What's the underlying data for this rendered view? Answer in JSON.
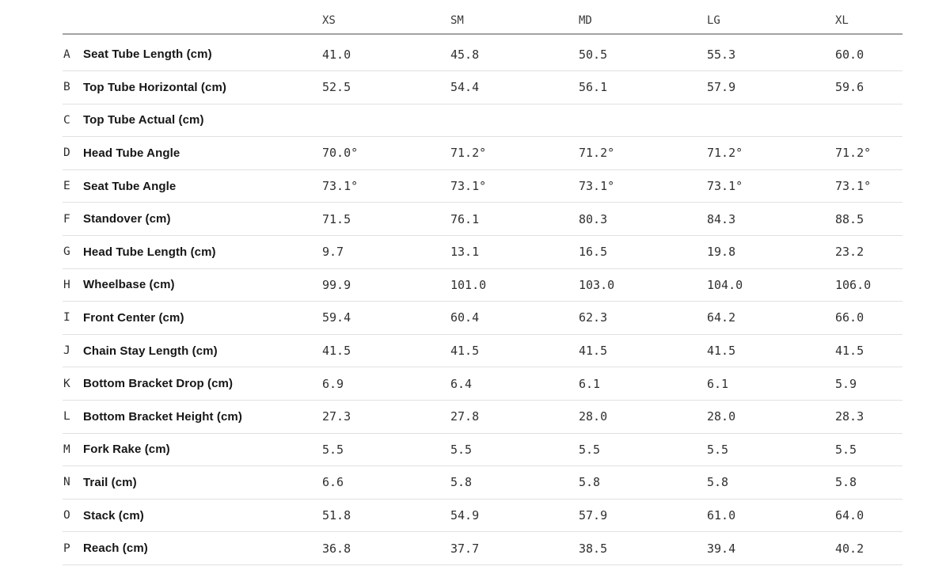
{
  "chart_data": {
    "type": "table",
    "size_columns": [
      "XS",
      "SM",
      "MD",
      "LG",
      "XL"
    ],
    "rows": [
      {
        "key": "A",
        "label": "Seat Tube Length (cm)",
        "values": [
          "41.0",
          "45.8",
          "50.5",
          "55.3",
          "60.0"
        ]
      },
      {
        "key": "B",
        "label": "Top Tube Horizontal (cm)",
        "values": [
          "52.5",
          "54.4",
          "56.1",
          "57.9",
          "59.6"
        ]
      },
      {
        "key": "C",
        "label": "Top Tube Actual (cm)",
        "values": [
          "",
          "",
          "",
          "",
          ""
        ]
      },
      {
        "key": "D",
        "label": "Head Tube Angle",
        "values": [
          "70.0°",
          "71.2°",
          "71.2°",
          "71.2°",
          "71.2°"
        ]
      },
      {
        "key": "E",
        "label": "Seat Tube Angle",
        "values": [
          "73.1°",
          "73.1°",
          "73.1°",
          "73.1°",
          "73.1°"
        ]
      },
      {
        "key": "F",
        "label": "Standover (cm)",
        "values": [
          "71.5",
          "76.1",
          "80.3",
          "84.3",
          "88.5"
        ]
      },
      {
        "key": "G",
        "label": "Head Tube Length (cm)",
        "values": [
          "9.7",
          "13.1",
          "16.5",
          "19.8",
          "23.2"
        ]
      },
      {
        "key": "H",
        "label": "Wheelbase (cm)",
        "values": [
          "99.9",
          "101.0",
          "103.0",
          "104.0",
          "106.0"
        ]
      },
      {
        "key": "I",
        "label": "Front Center (cm)",
        "values": [
          "59.4",
          "60.4",
          "62.3",
          "64.2",
          "66.0"
        ]
      },
      {
        "key": "J",
        "label": "Chain Stay Length (cm)",
        "values": [
          "41.5",
          "41.5",
          "41.5",
          "41.5",
          "41.5"
        ]
      },
      {
        "key": "K",
        "label": "Bottom Bracket Drop (cm)",
        "values": [
          "6.9",
          "6.4",
          "6.1",
          "6.1",
          "5.9"
        ]
      },
      {
        "key": "L",
        "label": "Bottom Bracket Height (cm)",
        "values": [
          "27.3",
          "27.8",
          "28.0",
          "28.0",
          "28.3"
        ]
      },
      {
        "key": "M",
        "label": "Fork Rake (cm)",
        "values": [
          "5.5",
          "5.5",
          "5.5",
          "5.5",
          "5.5"
        ]
      },
      {
        "key": "N",
        "label": "Trail (cm)",
        "values": [
          "6.6",
          "5.8",
          "5.8",
          "5.8",
          "5.8"
        ]
      },
      {
        "key": "O",
        "label": "Stack (cm)",
        "values": [
          "51.8",
          "54.9",
          "57.9",
          "61.0",
          "64.0"
        ]
      },
      {
        "key": "P",
        "label": "Reach (cm)",
        "values": [
          "36.8",
          "37.7",
          "38.5",
          "39.4",
          "40.2"
        ]
      }
    ],
    "title": "",
    "colors": {
      "label_text": "#161616",
      "value_text": "#303030",
      "header_rule": "#a3a3a3",
      "row_rule": "#e1e1e1"
    }
  }
}
